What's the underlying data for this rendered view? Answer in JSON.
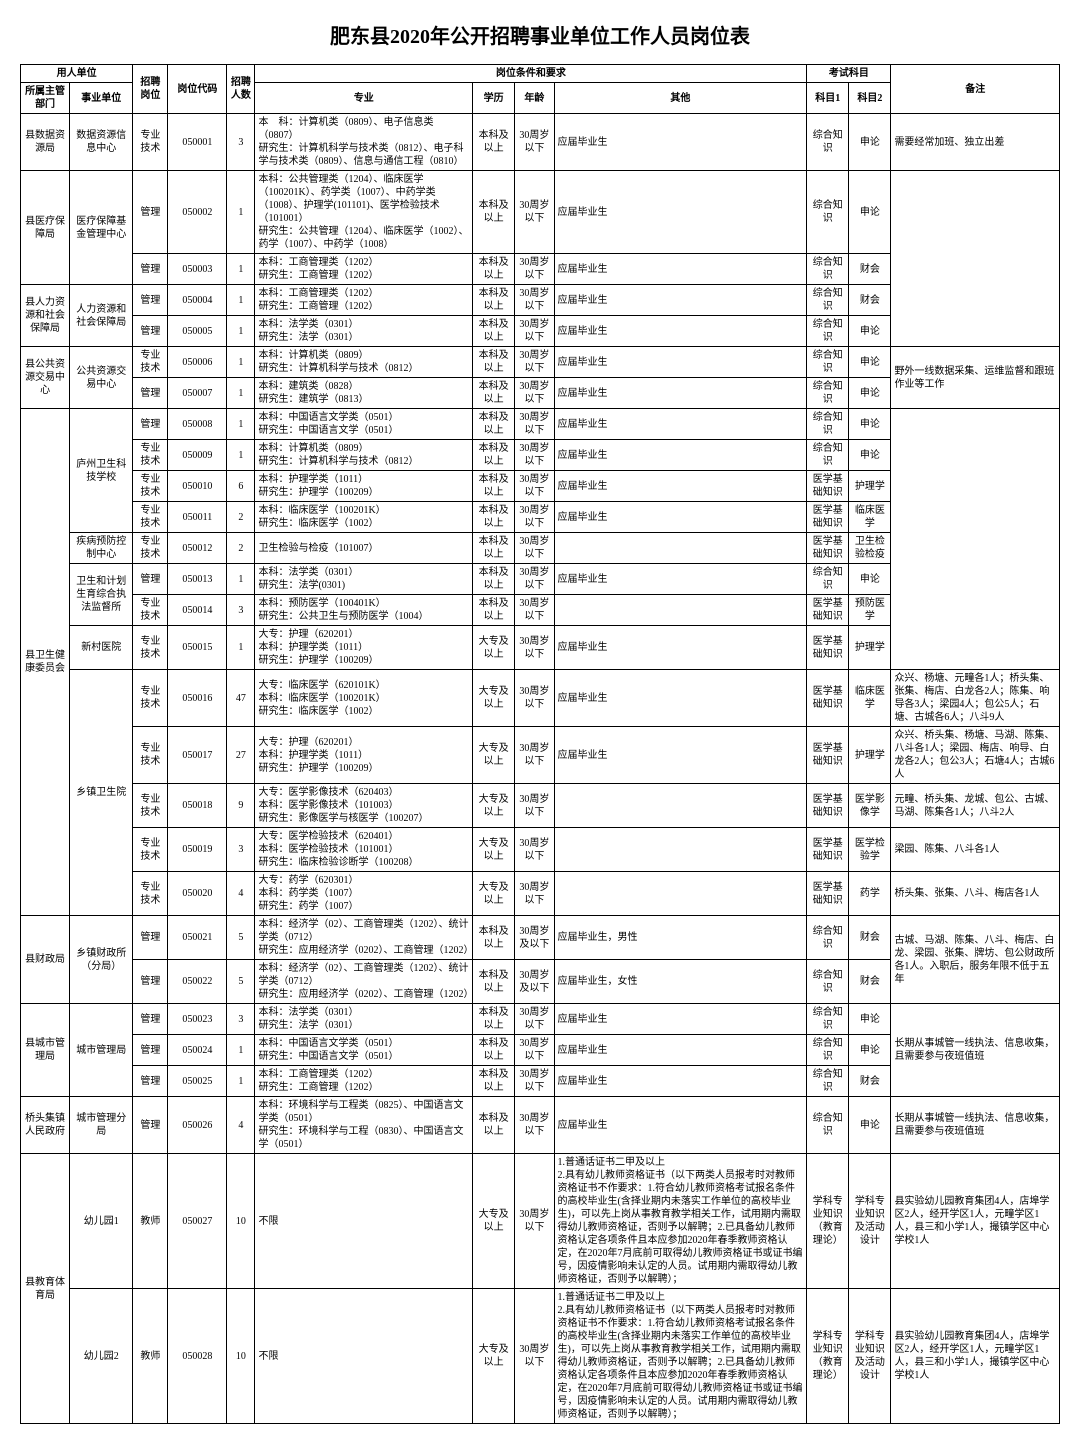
{
  "title": "肥东县2020年公开招聘事业单位工作人员岗位表",
  "header": {
    "employer": "用人单位",
    "dept1": "所属主管部门",
    "dept2": "事业单位",
    "post": "招聘岗位",
    "code": "岗位代码",
    "num": "招聘人数",
    "req": "岗位条件和要求",
    "major": "专业",
    "edu": "学历",
    "age": "年龄",
    "other": "其他",
    "exam": "考试科目",
    "sub1": "科目1",
    "sub2": "科目2",
    "note": "备注"
  },
  "rows": [
    {
      "dept1": "县数据资源局",
      "dept2": "数据资源信息中心",
      "post": "专业技术",
      "code": "050001",
      "num": "3",
      "major": "本　科：计算机类（0809）、电子信息类（0807）\n研究生：计算机科学与技术类（0812）、电子科学与技术类（0809）、信息与通信工程（0810）",
      "edu": "本科及以上",
      "age": "30周岁以下",
      "other": "应届毕业生",
      "sub1": "综合知识",
      "sub2": "申论",
      "note": "需要经常加班、独立出差"
    },
    {
      "dept1": "县医疗保障局",
      "dept1_rs": 2,
      "dept2": "医疗保障基金管理中心",
      "dept2_rs": 2,
      "post": "管理",
      "code": "050002",
      "num": "1",
      "major": "本科：公共管理类（1204）、临床医学（100201K）、药学类（1007）、中药学类（1008）、护理学(101101)、医学检验技术（101001）\n研究生：公共管理（1204）、临床医学（1002）、药学（1007）、中药学（1008）",
      "edu": "本科及以上",
      "age": "30周岁以下",
      "other": "应届毕业生",
      "sub1": "综合知识",
      "sub2": "申论",
      "note": "",
      "note_rs": 4
    },
    {
      "post": "管理",
      "code": "050003",
      "num": "1",
      "major": "本科：工商管理类（1202）\n研究生：工商管理（1202）",
      "edu": "本科及以上",
      "age": "30周岁以下",
      "other": "应届毕业生",
      "sub1": "综合知识",
      "sub2": "财会"
    },
    {
      "dept1": "县人力资源和社会保障局",
      "dept1_rs": 2,
      "dept2": "人力资源和社会保障局",
      "dept2_rs": 2,
      "post": "管理",
      "code": "050004",
      "num": "1",
      "major": "本科：工商管理类（1202）\n研究生：工商管理（1202）",
      "edu": "本科及以上",
      "age": "30周岁以下",
      "other": "应届毕业生",
      "sub1": "综合知识",
      "sub2": "财会"
    },
    {
      "post": "管理",
      "code": "050005",
      "num": "1",
      "major": "本科：法学类（0301）\n研究生：法学（0301）",
      "edu": "本科及以上",
      "age": "30周岁以下",
      "other": "应届毕业生",
      "sub1": "综合知识",
      "sub2": "申论"
    },
    {
      "dept1": "县公共资源交易中心",
      "dept1_rs": 2,
      "dept2": "公共资源交易中心",
      "dept2_rs": 2,
      "post": "专业技术",
      "code": "050006",
      "num": "1",
      "major": "本科：计算机类（0809）\n研究生：计算机科学与技术（0812）",
      "edu": "本科及以上",
      "age": "30周岁以下",
      "other": "应届毕业生",
      "sub1": "综合知识",
      "sub2": "申论",
      "note": "野外一线数据采集、运维监督和跟班作业等工作",
      "note_rs": 2
    },
    {
      "post": "管理",
      "code": "050007",
      "num": "1",
      "major": "本科：建筑类（0828）\n研究生：建筑学（0813）",
      "edu": "本科及以上",
      "age": "30周岁以下",
      "other": "应届毕业生",
      "sub1": "综合知识",
      "sub2": "申论"
    },
    {
      "dept1": "县卫生健康委员会",
      "dept1_rs": 13,
      "dept2": "庐州卫生科技学校",
      "dept2_rs": 4,
      "post": "管理",
      "code": "050008",
      "num": "1",
      "major": "本科：中国语言文学类（0501）\n研究生：中国语言文学（0501）",
      "edu": "本科及以上",
      "age": "30周岁以下",
      "other": "应届毕业生",
      "sub1": "综合知识",
      "sub2": "申论",
      "note": "",
      "note_rs": 8
    },
    {
      "post": "专业技术",
      "code": "050009",
      "num": "1",
      "major": "本科：计算机类（0809）\n研究生：计算机科学与技术（0812）",
      "edu": "本科及以上",
      "age": "30周岁以下",
      "other": "应届毕业生",
      "sub1": "综合知识",
      "sub2": "申论"
    },
    {
      "post": "专业技术",
      "code": "050010",
      "num": "6",
      "major": "本科：护理学类（1011）\n研究生：护理学（100209）",
      "edu": "本科及以上",
      "age": "30周岁以下",
      "other": "应届毕业生",
      "sub1": "医学基础知识",
      "sub2": "护理学"
    },
    {
      "post": "专业技术",
      "code": "050011",
      "num": "2",
      "major": "本科：临床医学（100201K）\n研究生：临床医学（1002）",
      "edu": "本科及以上",
      "age": "30周岁以下",
      "other": "应届毕业生",
      "sub1": "医学基础知识",
      "sub2": "临床医学"
    },
    {
      "dept2": "疾病预防控制中心",
      "post": "专业技术",
      "code": "050012",
      "num": "2",
      "major": "卫生检验与检疫（101007）",
      "edu": "本科及以上",
      "age": "30周岁以下",
      "other": "",
      "sub1": "医学基础知识",
      "sub2": "卫生检验检疫"
    },
    {
      "dept2": "卫生和计划生育综合执法监督所",
      "dept2_rs": 2,
      "post": "管理",
      "code": "050013",
      "num": "1",
      "major": "本科：法学类（0301）\n研究生：法学(0301)",
      "edu": "本科及以上",
      "age": "30周岁以下",
      "other": "应届毕业生",
      "sub1": "综合知识",
      "sub2": "申论"
    },
    {
      "post": "专业技术",
      "code": "050014",
      "num": "3",
      "major": "本科：预防医学（100401K）\n研究生：公共卫生与预防医学（1004）",
      "edu": "本科及以上",
      "age": "30周岁以下",
      "other": "",
      "sub1": "医学基础知识",
      "sub2": "预防医学"
    },
    {
      "dept2": "新村医院",
      "post": "专业技术",
      "code": "050015",
      "num": "1",
      "major": "大专：护理（620201）\n本科：护理学类（1011）\n研究生：护理学（100209）",
      "edu": "大专及以上",
      "age": "30周岁以下",
      "other": "应届毕业生",
      "sub1": "医学基础知识",
      "sub2": "护理学"
    },
    {
      "dept2": "乡镇卫生院",
      "dept2_rs": 5,
      "post": "专业技术",
      "code": "050016",
      "num": "47",
      "major": "大专：临床医学（620101K）\n本科：临床医学（100201K）\n研究生：临床医学（1002）",
      "edu": "大专及以上",
      "age": "30周岁以下",
      "other": "应届毕业生",
      "sub1": "医学基础知识",
      "sub2": "临床医学",
      "note": "众兴、杨塘、元疃各1人；桥头集、张集、梅店、白龙各2人；陈集、响导各3人；梁园4人；包公5人；石塘、古城各6人；八斗9人"
    },
    {
      "post": "专业技术",
      "code": "050017",
      "num": "27",
      "major": "大专：护理（620201）\n本科：护理学类（1011）\n研究生：护理学（100209）",
      "edu": "大专及以上",
      "age": "30周岁以下",
      "other": "应届毕业生",
      "sub1": "医学基础知识",
      "sub2": "护理学",
      "note": "众兴、桥头集、杨塘、马湖、陈集、八斗各1人；梁园、梅店、响导、白龙各2人；包公3人；石塘4人；古城6人"
    },
    {
      "post": "专业技术",
      "code": "050018",
      "num": "9",
      "major": "大专：医学影像技术（620403）\n本科：医学影像技术（101003）\n研究生：影像医学与核医学（100207）",
      "edu": "大专及以上",
      "age": "30周岁以下",
      "other": "",
      "sub1": "医学基础知识",
      "sub2": "医学影像学",
      "note": "元疃、桥头集、龙城、包公、古城、马湖、陈集各1人；八斗2人"
    },
    {
      "post": "专业技术",
      "code": "050019",
      "num": "3",
      "major": "大专：医学检验技术（620401）\n本科：医学检验技术（101001）\n研究生：临床检验诊断学（100208）",
      "edu": "大专及以上",
      "age": "30周岁以下",
      "other": "",
      "sub1": "医学基础知识",
      "sub2": "医学检验学",
      "note": "梁园、陈集、八斗各1人"
    },
    {
      "post": "专业技术",
      "code": "050020",
      "num": "4",
      "major": "大专：药学（620301）\n本科：药学类（1007）\n研究生：药学（1007）",
      "edu": "大专及以上",
      "age": "30周岁以下",
      "other": "",
      "sub1": "医学基础知识",
      "sub2": "药学",
      "note": "桥头集、张集、八斗、梅店各1人"
    },
    {
      "dept1": "县财政局",
      "dept1_rs": 2,
      "dept2": "乡镇财政所（分局）",
      "dept2_rs": 2,
      "post": "管理",
      "code": "050021",
      "num": "5",
      "major": "本科：经济学（02）、工商管理类（1202）、统计学类（0712）\n研究生：应用经济学（0202）、工商管理（1202）",
      "edu": "本科及以上",
      "age": "30周岁及以下",
      "other": "应届毕业生，男性",
      "sub1": "综合知识",
      "sub2": "财会",
      "note": "古城、马湖、陈集、八斗、梅店、白龙、梁园、张集、牌坊、包公财政所各1人。入职后，服务年限不低于五年",
      "note_rs": 2
    },
    {
      "post": "管理",
      "code": "050022",
      "num": "5",
      "major": "本科：经济学（02）、工商管理类（1202）、统计学类（0712）\n研究生：应用经济学（0202）、工商管理（1202）",
      "edu": "本科及以上",
      "age": "30周岁及以下",
      "other": "应届毕业生，女性",
      "sub1": "综合知识",
      "sub2": "财会"
    },
    {
      "dept1": "县城市管理局",
      "dept1_rs": 3,
      "dept2": "城市管理局",
      "dept2_rs": 3,
      "post": "管理",
      "code": "050023",
      "num": "3",
      "major": "本科：法学类（0301）\n研究生：法学（0301）",
      "edu": "本科及以上",
      "age": "30周岁以下",
      "other": "应届毕业生",
      "sub1": "综合知识",
      "sub2": "申论",
      "note": "长期从事城管一线执法、信息收集，且需要参与夜班值班",
      "note_rs": 3
    },
    {
      "post": "管理",
      "code": "050024",
      "num": "1",
      "major": "本科：中国语言文学类（0501）\n研究生：中国语言文学（0501）",
      "edu": "本科及以上",
      "age": "30周岁以下",
      "other": "应届毕业生",
      "sub1": "综合知识",
      "sub2": "申论"
    },
    {
      "post": "管理",
      "code": "050025",
      "num": "1",
      "major": "本科：工商管理类（1202）\n研究生：工商管理（1202）",
      "edu": "本科及以上",
      "age": "30周岁以下",
      "other": "应届毕业生",
      "sub1": "综合知识",
      "sub2": "财会"
    },
    {
      "dept1": "桥头集镇人民政府",
      "dept2": "城市管理分局",
      "post": "管理",
      "code": "050026",
      "num": "4",
      "major": "本科：环境科学与工程类（0825）、中国语言文学类（0501）\n研究生：环境科学与工程（0830）、中国语言文学（0501）",
      "edu": "本科及以上",
      "age": "30周岁以下",
      "other": "应届毕业生",
      "sub1": "综合知识",
      "sub2": "申论",
      "note": "长期从事城管一线执法、信息收集，且需要参与夜班值班"
    },
    {
      "dept1": "县教育体育局",
      "dept1_rs": 2,
      "dept2": "幼儿园1",
      "post": "教师",
      "code": "050027",
      "num": "10",
      "major": "不限",
      "edu": "大专及以上",
      "age": "30周岁以下",
      "other": "1.普通话证书二甲及以上\n2.具有幼儿教师资格证书（以下两类人员报考时对教师资格证书不作要求：1.符合幼儿教师资格考试报名条件的高校毕业生(含择业期内未落实工作单位的高校毕业生)，可以先上岗从事教育教学相关工作，试用期内需取得幼儿教师资格证，否则予以解聘；2.已具备幼儿教师资格认定各项条件且本应参加2020年春季教师资格认定，在2020年7月底前可取得幼儿教师资格证书或证书编号，因疫情影响未认定的人员。试用期内需取得幼儿教师资格证，否则予以解聘）；",
      "sub1": "学科专业知识（教育理论）",
      "sub2": "学科专业知识及活动设计",
      "note": "县实验幼儿园教育集团4人，店埠学区2人，经开学区1人，元疃学区1人，县三和小学1人，撮镇学区中心学校1人"
    },
    {
      "dept2": "幼儿园2",
      "post": "教师",
      "code": "050028",
      "num": "10",
      "major": "不限",
      "edu": "大专及以上",
      "age": "30周岁以下",
      "other": "1.普通话证书二甲及以上\n2.具有幼儿教师资格证书（以下两类人员报考时对教师资格证书不作要求：1.符合幼儿教师资格考试报名条件的高校毕业生(含择业期内未落实工作单位的高校毕业生)，可以先上岗从事教育教学相关工作，试用期内需取得幼儿教师资格证，否则予以解聘；2.已具备幼儿教师资格认定各项条件且本应参加2020年春季教师资格认定，在2020年7月底前可取得幼儿教师资格证书或证书编号，因疫情影响未认定的人员。试用期内需取得幼儿教师资格证，否则予以解聘）；",
      "sub1": "学科专业知识（教育理论）",
      "sub2": "学科专业知识及活动设计",
      "note": "县实验幼儿园教育集团4人，店埠学区2人，经开学区1人，元疃学区1人，县三和小学1人，撮镇学区中心学校1人"
    }
  ]
}
